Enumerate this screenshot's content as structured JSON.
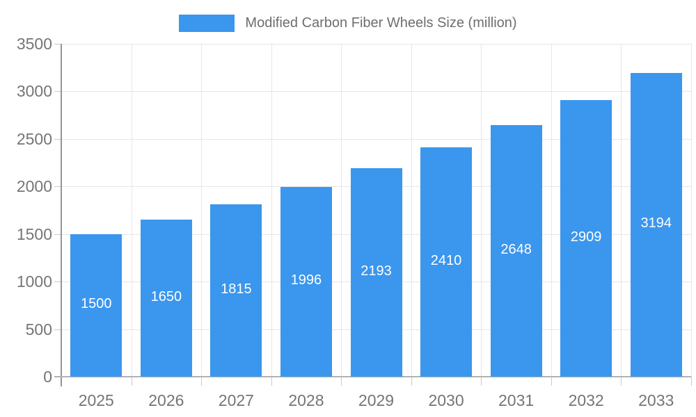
{
  "page": {
    "background_color": "#ffffff"
  },
  "legend": {
    "label": "Modified Carbon Fiber Wheels Size (million)",
    "swatch_color": "#3b96ed",
    "label_color": "#6e6e6e",
    "position": "top-center"
  },
  "chart_data": {
    "type": "bar",
    "title": "Modified Carbon Fiber Wheels Size (million)",
    "categories": [
      "2025",
      "2026",
      "2027",
      "2028",
      "2029",
      "2030",
      "2031",
      "2032",
      "2033"
    ],
    "series": [
      {
        "name": "Modified Carbon Fiber Wheels Size (million)",
        "values": [
          1500,
          1650,
          1815,
          1996,
          2193,
          2410,
          2648,
          2909,
          3194
        ]
      }
    ],
    "value_labels": [
      "1500",
      "1650",
      "1815",
      "1996",
      "2193",
      "2410",
      "2648",
      "2909",
      "3194"
    ],
    "value_labels_position": "inside-center",
    "value_label_color": "#ffffff",
    "xlabel": "",
    "ylabel": "",
    "ylim": [
      0,
      3500
    ],
    "ytick_step": 500,
    "yticks": [
      0,
      500,
      1000,
      1500,
      2000,
      2500,
      3000,
      3500
    ],
    "grid": true,
    "legend_position": "top",
    "bar_color": "#3b96ed",
    "axis_tick_label_color": "#757575",
    "gridline_color": "#e6e6e6",
    "axis_line_color": "#949494"
  }
}
